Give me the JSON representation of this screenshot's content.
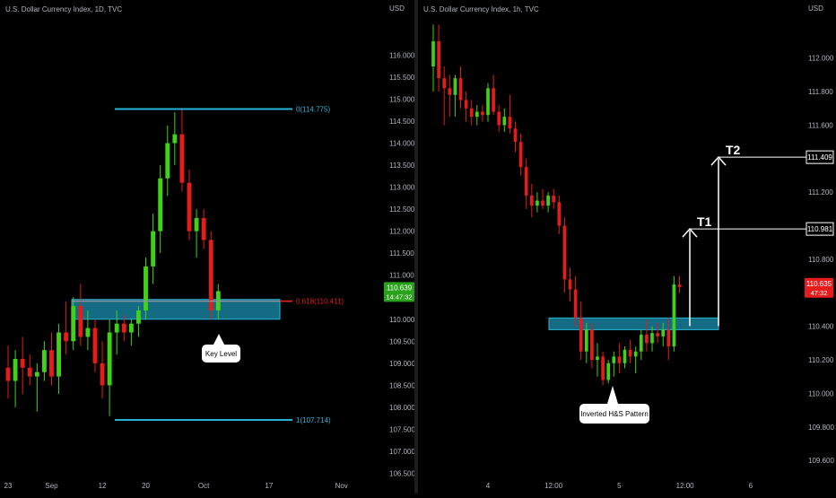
{
  "colors": {
    "background": "#000000",
    "bull": "#3fd216",
    "bear": "#e61b1b",
    "level_line": "#27b3d6",
    "zone_fill": "#1b8fb0",
    "axis_text": "#b2b5be",
    "white": "#ffffff"
  },
  "chart_data": [
    {
      "type": "candlestick",
      "title": "U.S. Dollar Currency Index, 1D, TVC",
      "currency_label": "USD",
      "ylim": [
        106.45,
        116.7
      ],
      "y_ticks": [
        "116.000",
        "115.500",
        "115.000",
        "114.500",
        "114.000",
        "113.500",
        "113.000",
        "112.500",
        "112.000",
        "111.500",
        "111.000",
        "110.500",
        "110.000",
        "109.500",
        "109.000",
        "108.500",
        "108.000",
        "107.500",
        "107.000",
        "106.500"
      ],
      "x_ticks": [
        {
          "label": "23",
          "i": 0
        },
        {
          "label": "Sep",
          "i": 6
        },
        {
          "label": "12",
          "i": 13
        },
        {
          "label": "20",
          "i": 19
        },
        {
          "label": "Oct",
          "i": 27
        },
        {
          "label": "17",
          "i": 36
        },
        {
          "label": "Nov",
          "i": 46
        }
      ],
      "candles": [
        {
          "o": 108.9,
          "h": 109.4,
          "l": 108.2,
          "c": 108.6
        },
        {
          "o": 108.6,
          "h": 109.3,
          "l": 108.0,
          "c": 109.1
        },
        {
          "o": 109.1,
          "h": 109.6,
          "l": 108.3,
          "c": 108.9
        },
        {
          "o": 108.9,
          "h": 109.2,
          "l": 108.5,
          "c": 108.7
        },
        {
          "o": 108.7,
          "h": 109.0,
          "l": 107.9,
          "c": 108.8
        },
        {
          "o": 108.8,
          "h": 109.5,
          "l": 108.6,
          "c": 109.3
        },
        {
          "o": 109.3,
          "h": 109.7,
          "l": 108.5,
          "c": 108.7
        },
        {
          "o": 108.7,
          "h": 109.9,
          "l": 108.3,
          "c": 109.7
        },
        {
          "o": 109.7,
          "h": 110.4,
          "l": 109.2,
          "c": 109.5
        },
        {
          "o": 109.5,
          "h": 110.5,
          "l": 109.3,
          "c": 110.3
        },
        {
          "o": 110.3,
          "h": 110.8,
          "l": 109.4,
          "c": 109.6
        },
        {
          "o": 109.6,
          "h": 110.2,
          "l": 109.3,
          "c": 109.8
        },
        {
          "o": 109.8,
          "h": 110.0,
          "l": 108.8,
          "c": 109.0
        },
        {
          "o": 109.0,
          "h": 109.5,
          "l": 108.2,
          "c": 108.5
        },
        {
          "o": 108.5,
          "h": 110.0,
          "l": 107.8,
          "c": 109.7
        },
        {
          "o": 109.7,
          "h": 110.2,
          "l": 109.2,
          "c": 109.9
        },
        {
          "o": 109.9,
          "h": 110.1,
          "l": 109.5,
          "c": 109.7
        },
        {
          "o": 109.7,
          "h": 110.0,
          "l": 109.4,
          "c": 109.9
        },
        {
          "o": 109.9,
          "h": 110.3,
          "l": 109.6,
          "c": 110.2
        },
        {
          "o": 110.2,
          "h": 111.4,
          "l": 110.0,
          "c": 111.2
        },
        {
          "o": 111.2,
          "h": 112.4,
          "l": 110.8,
          "c": 112.0
        },
        {
          "o": 112.0,
          "h": 113.5,
          "l": 111.5,
          "c": 113.2
        },
        {
          "o": 113.2,
          "h": 114.4,
          "l": 112.8,
          "c": 114.0
        },
        {
          "o": 114.0,
          "h": 114.7,
          "l": 113.5,
          "c": 114.2
        },
        {
          "o": 114.2,
          "h": 114.8,
          "l": 112.9,
          "c": 113.1
        },
        {
          "o": 113.1,
          "h": 113.4,
          "l": 111.8,
          "c": 112.0
        },
        {
          "o": 112.0,
          "h": 112.5,
          "l": 111.4,
          "c": 112.3
        },
        {
          "o": 112.3,
          "h": 112.5,
          "l": 111.6,
          "c": 111.8
        },
        {
          "o": 111.8,
          "h": 112.0,
          "l": 110.0,
          "c": 110.2
        },
        {
          "o": 110.2,
          "h": 110.8,
          "l": 110.0,
          "c": 110.639
        }
      ],
      "levels": [
        {
          "label": "0(114.775)",
          "value": 114.775
        },
        {
          "label": "0.618(110.411)",
          "value": 110.411
        },
        {
          "label": "1(107.714)",
          "value": 107.714
        }
      ],
      "zone": {
        "from": 110.0,
        "to": 110.45
      },
      "price_tag": {
        "value": "110.639",
        "countdown": "14:47:32"
      },
      "annotation": "Key Level"
    },
    {
      "type": "candlestick",
      "title": "U.S. Dollar Currency Index, 1h, TVC",
      "currency_label": "USD",
      "ylim": [
        109.51,
        112.25
      ],
      "y_ticks": [
        "112.000",
        "111.800",
        "111.600",
        "111.400",
        "111.200",
        "111.000",
        "110.800",
        "110.600",
        "110.400",
        "110.200",
        "110.000",
        "109.800",
        "109.600"
      ],
      "x_ticks": [
        {
          "label": "4",
          "i": 10
        },
        {
          "label": "12:00",
          "i": 22
        },
        {
          "label": "5",
          "i": 34
        },
        {
          "label": "12:00",
          "i": 46
        },
        {
          "label": "6",
          "i": 58
        }
      ],
      "candles": [
        {
          "o": 111.95,
          "h": 112.2,
          "l": 111.8,
          "c": 112.1
        },
        {
          "o": 112.1,
          "h": 112.2,
          "l": 111.8,
          "c": 111.88
        },
        {
          "o": 111.88,
          "h": 111.95,
          "l": 111.6,
          "c": 111.82
        },
        {
          "o": 111.82,
          "h": 111.9,
          "l": 111.65,
          "c": 111.78
        },
        {
          "o": 111.78,
          "h": 111.9,
          "l": 111.65,
          "c": 111.88
        },
        {
          "o": 111.88,
          "h": 111.95,
          "l": 111.7,
          "c": 111.75
        },
        {
          "o": 111.75,
          "h": 111.8,
          "l": 111.62,
          "c": 111.7
        },
        {
          "o": 111.7,
          "h": 111.75,
          "l": 111.6,
          "c": 111.65
        },
        {
          "o": 111.65,
          "h": 111.72,
          "l": 111.6,
          "c": 111.68
        },
        {
          "o": 111.68,
          "h": 111.72,
          "l": 111.62,
          "c": 111.66
        },
        {
          "o": 111.66,
          "h": 111.85,
          "l": 111.62,
          "c": 111.82
        },
        {
          "o": 111.82,
          "h": 111.9,
          "l": 111.66,
          "c": 111.68
        },
        {
          "o": 111.68,
          "h": 111.72,
          "l": 111.56,
          "c": 111.6
        },
        {
          "o": 111.6,
          "h": 111.7,
          "l": 111.56,
          "c": 111.65
        },
        {
          "o": 111.65,
          "h": 111.78,
          "l": 111.55,
          "c": 111.58
        },
        {
          "o": 111.58,
          "h": 111.62,
          "l": 111.44,
          "c": 111.5
        },
        {
          "o": 111.5,
          "h": 111.55,
          "l": 111.3,
          "c": 111.35
        },
        {
          "o": 111.35,
          "h": 111.4,
          "l": 111.1,
          "c": 111.18
        },
        {
          "o": 111.18,
          "h": 111.25,
          "l": 111.05,
          "c": 111.12
        },
        {
          "o": 111.12,
          "h": 111.2,
          "l": 111.08,
          "c": 111.15
        },
        {
          "o": 111.15,
          "h": 111.22,
          "l": 111.1,
          "c": 111.12
        },
        {
          "o": 111.12,
          "h": 111.2,
          "l": 111.08,
          "c": 111.18
        },
        {
          "o": 111.18,
          "h": 111.22,
          "l": 111.1,
          "c": 111.14
        },
        {
          "o": 111.14,
          "h": 111.18,
          "l": 110.95,
          "c": 111.0
        },
        {
          "o": 111.0,
          "h": 111.05,
          "l": 110.6,
          "c": 110.68
        },
        {
          "o": 110.68,
          "h": 110.75,
          "l": 110.55,
          "c": 110.62
        },
        {
          "o": 110.62,
          "h": 110.7,
          "l": 110.4,
          "c": 110.45
        },
        {
          "o": 110.45,
          "h": 110.55,
          "l": 110.2,
          "c": 110.25
        },
        {
          "o": 110.25,
          "h": 110.42,
          "l": 110.18,
          "c": 110.38
        },
        {
          "o": 110.38,
          "h": 110.42,
          "l": 110.15,
          "c": 110.2
        },
        {
          "o": 110.2,
          "h": 110.3,
          "l": 110.1,
          "c": 110.22
        },
        {
          "o": 110.22,
          "h": 110.25,
          "l": 110.05,
          "c": 110.08
        },
        {
          "o": 110.08,
          "h": 110.2,
          "l": 110.06,
          "c": 110.18
        },
        {
          "o": 110.18,
          "h": 110.25,
          "l": 110.1,
          "c": 110.22
        },
        {
          "o": 110.22,
          "h": 110.3,
          "l": 110.12,
          "c": 110.18
        },
        {
          "o": 110.18,
          "h": 110.28,
          "l": 110.15,
          "c": 110.26
        },
        {
          "o": 110.26,
          "h": 110.32,
          "l": 110.18,
          "c": 110.22
        },
        {
          "o": 110.22,
          "h": 110.28,
          "l": 110.12,
          "c": 110.25
        },
        {
          "o": 110.25,
          "h": 110.38,
          "l": 110.2,
          "c": 110.35
        },
        {
          "o": 110.35,
          "h": 110.44,
          "l": 110.25,
          "c": 110.3
        },
        {
          "o": 110.3,
          "h": 110.4,
          "l": 110.25,
          "c": 110.36
        },
        {
          "o": 110.36,
          "h": 110.42,
          "l": 110.3,
          "c": 110.34
        },
        {
          "o": 110.34,
          "h": 110.42,
          "l": 110.28,
          "c": 110.38
        },
        {
          "o": 110.38,
          "h": 110.45,
          "l": 110.2,
          "c": 110.28
        },
        {
          "o": 110.28,
          "h": 110.7,
          "l": 110.25,
          "c": 110.65
        },
        {
          "o": 110.65,
          "h": 110.7,
          "l": 110.6,
          "c": 110.635
        }
      ],
      "zone": {
        "from": 110.38,
        "to": 110.45
      },
      "targets": [
        {
          "label": "T1",
          "value": 110.981
        },
        {
          "label": "T2",
          "value": 111.409
        }
      ],
      "price_tag": {
        "value": "110.635",
        "countdown": "47:32"
      },
      "annotation": "Inverted H&S Pattern"
    }
  ]
}
